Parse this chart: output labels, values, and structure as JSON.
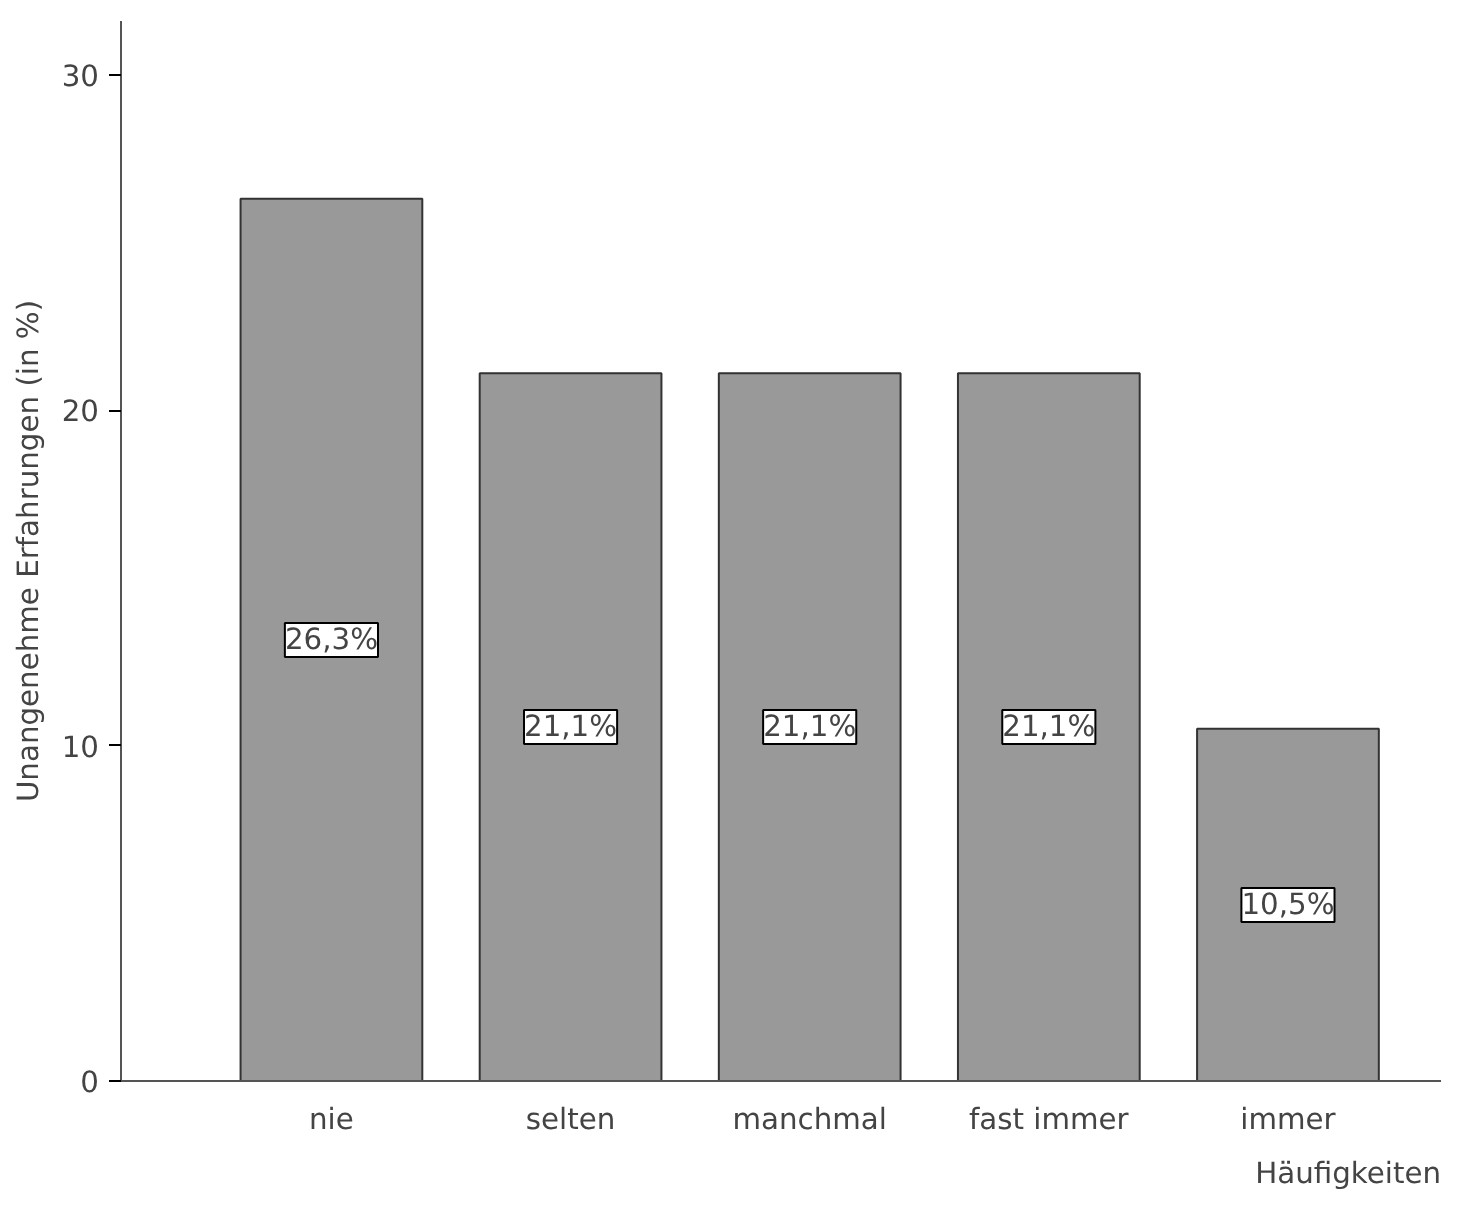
{
  "chart_data": {
    "type": "bar",
    "xlabel": "Häufigkeiten",
    "ylabel": "Unangenehme Erfahrungen (in %)",
    "categories": [
      "nie",
      "selten",
      "manchmal",
      "fast immer",
      "immer"
    ],
    "values": [
      26.3,
      21.1,
      21.1,
      21.1,
      10.5
    ],
    "value_labels": [
      "26,3%",
      "21,1%",
      "21,1%",
      "21,1%",
      "10,5%"
    ],
    "color": "#999999",
    "ylim": [
      0,
      31.6
    ],
    "yticks": [
      0,
      10,
      20,
      30
    ],
    "grid": false
  }
}
